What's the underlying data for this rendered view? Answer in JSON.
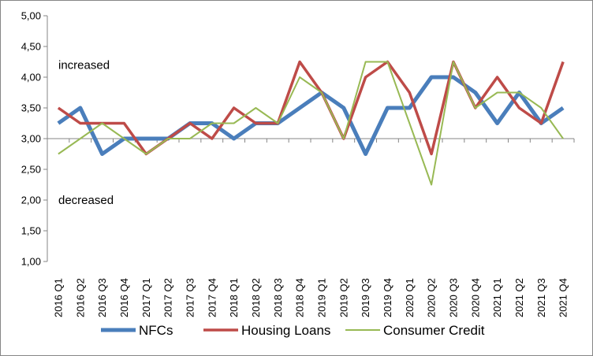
{
  "chart_data": {
    "type": "line",
    "title": "",
    "xlabel": "",
    "ylabel": "",
    "ylim": [
      1.0,
      5.0
    ],
    "ytick_step": 0.5,
    "ytick_labels": [
      "1,00",
      "1,50",
      "2,00",
      "2,50",
      "3,00",
      "3,50",
      "4,00",
      "4,50",
      "5,00"
    ],
    "grid": false,
    "legend_position": "bottom",
    "categories": [
      "2016 Q1",
      "2016 Q2",
      "2016 Q3",
      "2016 Q4",
      "2017 Q1",
      "2017 Q2",
      "2017 Q3",
      "2017 Q4",
      "2018 Q1",
      "2018 Q2",
      "2018 Q3",
      "2018 Q4",
      "2019 Q1",
      "2019 Q2",
      "2019 Q3",
      "2019 Q4",
      "2020 Q1",
      "2020 Q2",
      "2020 Q3",
      "2020 Q4",
      "2021 Q1",
      "2021 Q2",
      "2021 Q3",
      "2021 Q4"
    ],
    "annotations": [
      {
        "text": "increased",
        "y": 4.2
      },
      {
        "text": "decreased",
        "y": 2.0
      }
    ],
    "series": [
      {
        "name": "NFCs",
        "color": "#4a7ebb",
        "values": [
          3.25,
          3.5,
          2.75,
          3.0,
          3.0,
          3.0,
          3.25,
          3.25,
          3.0,
          3.25,
          3.25,
          3.5,
          3.75,
          3.5,
          2.75,
          3.5,
          3.5,
          4.0,
          4.0,
          3.75,
          3.25,
          3.75,
          3.25,
          3.5
        ]
      },
      {
        "name": "Housing Loans",
        "color": "#be4b48",
        "values": [
          3.5,
          3.25,
          3.25,
          3.25,
          2.75,
          3.0,
          3.25,
          3.0,
          3.5,
          3.25,
          3.25,
          4.25,
          3.75,
          3.0,
          4.0,
          4.25,
          3.75,
          2.75,
          4.25,
          3.5,
          4.0,
          3.5,
          3.25,
          4.25
        ]
      },
      {
        "name": "Consumer Credit",
        "color": "#98b954",
        "values": [
          2.75,
          3.0,
          3.25,
          3.0,
          2.75,
          3.0,
          3.0,
          3.25,
          3.25,
          3.5,
          3.25,
          4.0,
          3.75,
          3.0,
          4.25,
          4.25,
          3.25,
          2.25,
          4.25,
          3.5,
          3.75,
          3.75,
          3.5,
          3.0
        ]
      }
    ]
  }
}
